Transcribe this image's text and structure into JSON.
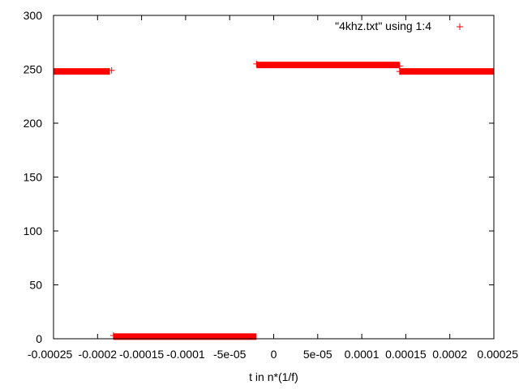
{
  "chart_data": {
    "type": "scatter",
    "title": "",
    "xlabel": "t in n*(1/f)",
    "ylabel": "",
    "xlim": [
      -0.00025,
      0.00025
    ],
    "ylim": [
      0,
      300
    ],
    "x_ticks": [
      -0.00025,
      -0.0002,
      -0.00015,
      -0.0001,
      -5e-05,
      0,
      5e-05,
      0.0001,
      0.00015,
      0.0002,
      0.00025
    ],
    "x_tick_labels": [
      "-0.00025",
      "-0.0002",
      "-0.00015",
      "-0.0001",
      "-5e-05",
      "0",
      "5e-05",
      "0.0001",
      "0.00015",
      "0.0002",
      "0.00025"
    ],
    "y_ticks": [
      0,
      50,
      100,
      150,
      200,
      250,
      300
    ],
    "y_tick_labels": [
      "0",
      "50",
      "100",
      "150",
      "200",
      "250",
      "300"
    ],
    "grid": false,
    "legend_position": "top-right",
    "color": "#ff0000",
    "series": [
      {
        "name": "\"4khz.txt\" using 1:4",
        "segments": [
          {
            "x_start": -0.00025,
            "x_end": -0.000186,
            "y": 248
          },
          {
            "x_start": -0.000182,
            "x_end": -1.95e-05,
            "y": 2
          },
          {
            "x_start": -1.95e-05,
            "x_end": 0.000143,
            "y": 254
          },
          {
            "x_start": 0.000143,
            "x_end": 0.00025,
            "y": 248
          }
        ],
        "points": [
          {
            "x": -0.000184,
            "y": 249
          },
          {
            "x": -0.000182,
            "y": 3
          },
          {
            "x": -1.95e-05,
            "y": 255
          },
          {
            "x": 0.000143,
            "y": 253
          },
          {
            "x": 0.000143,
            "y": 248
          }
        ]
      }
    ]
  }
}
